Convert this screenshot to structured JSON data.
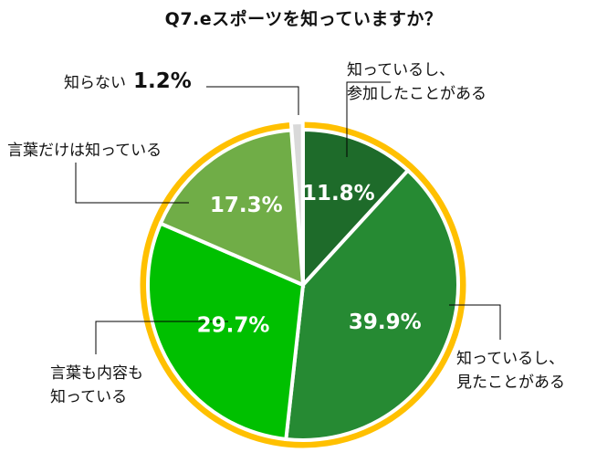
{
  "chart_data": {
    "type": "pie",
    "title": "Q7.eスポーツを知っていますか？",
    "slices": [
      {
        "label": "知っているし、参加したことがある",
        "label_lines": [
          "知っているし、",
          "参加したことがある"
        ],
        "value": 11.8,
        "display": "11.8%",
        "color": "#1e6b2a"
      },
      {
        "label": "知っているし、見たことがある",
        "label_lines": [
          "知っているし、",
          "見たことがある"
        ],
        "value": 39.9,
        "display": "39.9%",
        "color": "#268a33"
      },
      {
        "label": "言葉も内容も知っている",
        "label_lines": [
          "言葉も内容も",
          "知っている"
        ],
        "value": 29.7,
        "display": "29.7%",
        "color": "#00c000"
      },
      {
        "label": "言葉だけは知っている",
        "label_lines": [
          "言葉だけは知っている"
        ],
        "value": 17.3,
        "display": "17.3%",
        "color": "#70ad47"
      },
      {
        "label": "知らない",
        "label_lines": [
          "知らない"
        ],
        "value": 1.2,
        "display": "1.2%",
        "color": "#d9d9d9"
      }
    ],
    "start": "top",
    "direction": "clockwise",
    "ring_color": "#ffc000",
    "label_text_color": "#ffffff",
    "legend": "none"
  }
}
